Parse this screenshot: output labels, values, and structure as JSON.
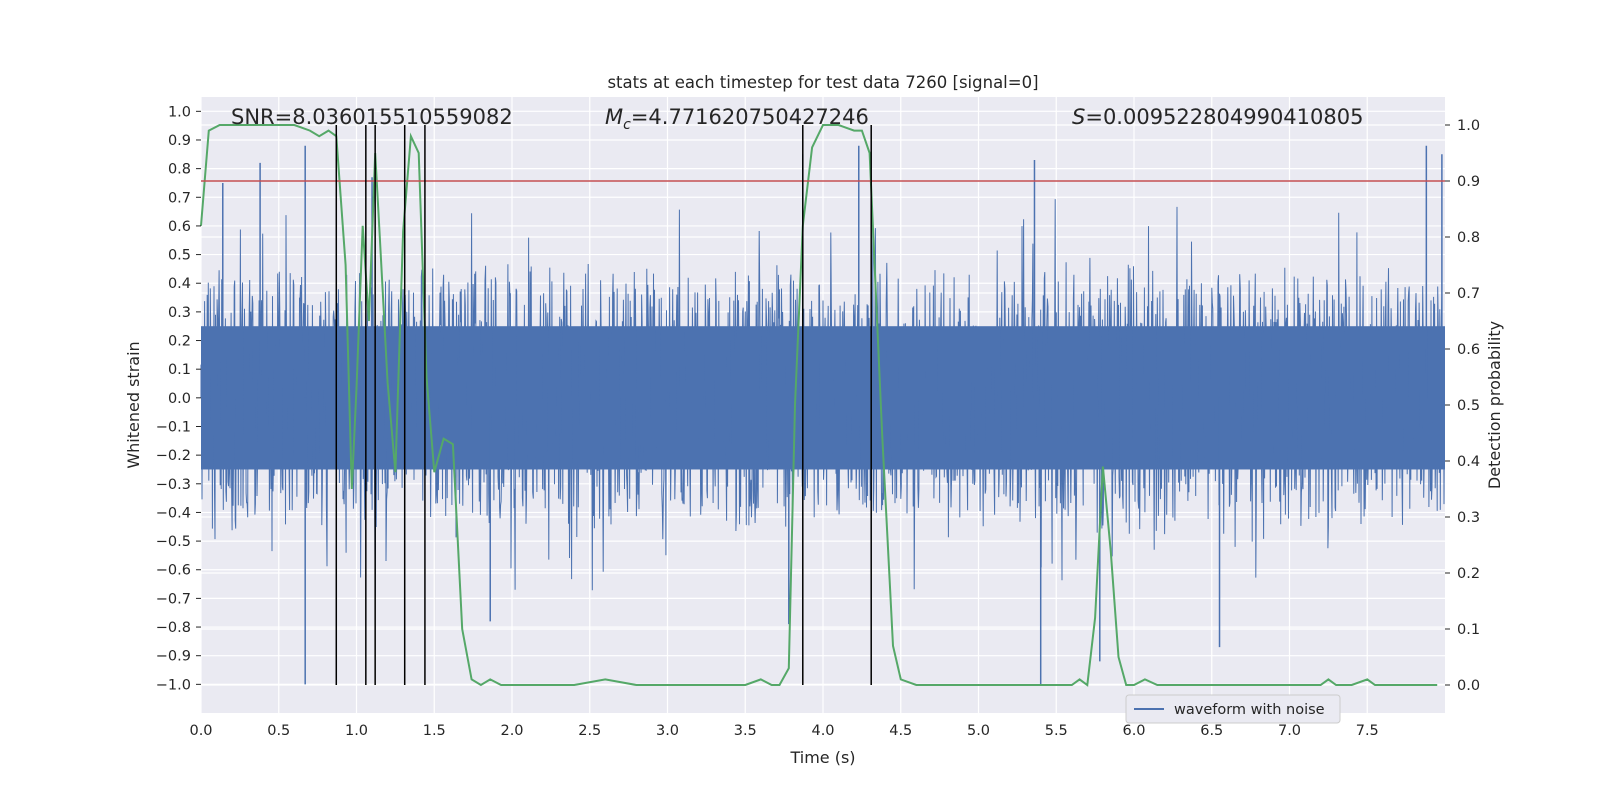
{
  "chart_data": {
    "type": "line",
    "title": "stats at each timestep for test data 7260 [signal=0]",
    "xlabel": "Time (s)",
    "ylabel_left": "Whitened strain",
    "ylabel_right": "Detection probability",
    "xlim": [
      0,
      8
    ],
    "ylim_left": [
      -1.1,
      1.05
    ],
    "ylim_right": [
      -0.05,
      1.05
    ],
    "xticks": [
      "0.0",
      "0.5",
      "1.0",
      "1.5",
      "2.0",
      "2.5",
      "3.0",
      "3.5",
      "4.0",
      "4.5",
      "5.0",
      "5.5",
      "6.0",
      "6.5",
      "7.0",
      "7.5"
    ],
    "yticks_left": [
      "1.0",
      "0.9",
      "0.8",
      "0.7",
      "0.6",
      "0.5",
      "0.4",
      "0.3",
      "0.2",
      "0.1",
      "0.0",
      "-0.1",
      "-0.2",
      "-0.3",
      "-0.4",
      "-0.5",
      "-0.6",
      "-0.7",
      "-0.8",
      "-0.9",
      "-1.0"
    ],
    "yticks_right": [
      "1.0",
      "0.9",
      "0.8",
      "0.7",
      "0.6",
      "0.5",
      "0.4",
      "0.3",
      "0.2",
      "0.1",
      "0.0"
    ],
    "grid": true,
    "legend": {
      "label": "waveform with noise",
      "placement": "lower-right"
    },
    "annotations": {
      "snr": "SNR=8.036015510559082",
      "mc_symbol": "M",
      "mc_sub": "c",
      "mc_value": "=4.771620750427246",
      "s_symbol": "S",
      "s_value": "=0.009522804990410805"
    },
    "threshold": {
      "value": 0.9,
      "axis": "right",
      "color": "#c44e52"
    },
    "detection_marks_s": [
      0.87,
      1.06,
      1.12,
      1.31,
      1.44,
      3.87,
      4.31
    ],
    "series": [
      {
        "name": "waveform with noise",
        "axis": "left",
        "color": "#4c72b0",
        "envelope_note": "dense noise, amplitude approx ±0.45 with peaks up to ±1.0",
        "peaks": [
          {
            "x": 0.67,
            "y": 0.88
          },
          {
            "x": 0.67,
            "y": -1.0
          },
          {
            "x": 0.38,
            "y": 0.82
          },
          {
            "x": 1.1,
            "y": 0.77
          },
          {
            "x": 4.23,
            "y": 0.88
          },
          {
            "x": 3.87,
            "y": 0.85
          },
          {
            "x": 5.36,
            "y": 0.83
          },
          {
            "x": 5.4,
            "y": -1.0
          },
          {
            "x": 5.78,
            "y": -0.92
          },
          {
            "x": 6.55,
            "y": -0.87
          },
          {
            "x": 7.88,
            "y": 0.88
          },
          {
            "x": 7.98,
            "y": 0.85
          },
          {
            "x": 1.86,
            "y": -0.78
          },
          {
            "x": 3.78,
            "y": -0.79
          },
          {
            "x": 0.14,
            "y": 0.75
          }
        ]
      },
      {
        "name": "detection probability",
        "axis": "right",
        "color": "#55a868",
        "x": [
          0.0,
          0.05,
          0.12,
          0.2,
          0.3,
          0.4,
          0.5,
          0.6,
          0.7,
          0.76,
          0.82,
          0.87,
          0.93,
          0.97,
          1.0,
          1.04,
          1.08,
          1.12,
          1.15,
          1.2,
          1.25,
          1.3,
          1.35,
          1.4,
          1.45,
          1.5,
          1.56,
          1.62,
          1.68,
          1.74,
          1.8,
          1.86,
          1.93,
          2.0,
          2.1,
          2.2,
          2.4,
          2.6,
          2.8,
          3.0,
          3.2,
          3.3,
          3.4,
          3.5,
          3.6,
          3.67,
          3.72,
          3.78,
          3.82,
          3.87,
          3.93,
          4.0,
          4.1,
          4.2,
          4.25,
          4.3,
          4.38,
          4.45,
          4.5,
          4.6,
          4.7,
          4.8,
          5.0,
          5.2,
          5.4,
          5.5,
          5.6,
          5.65,
          5.7,
          5.75,
          5.8,
          5.85,
          5.9,
          5.95,
          6.0,
          6.07,
          6.15,
          6.2,
          6.3,
          6.5,
          6.7,
          6.9,
          7.0,
          7.2,
          7.25,
          7.3,
          7.4,
          7.5,
          7.55,
          7.6,
          7.7,
          7.8,
          7.95
        ],
        "values": [
          0.82,
          0.99,
          1.0,
          1.0,
          1.0,
          1.0,
          1.0,
          1.0,
          0.99,
          0.98,
          0.99,
          0.98,
          0.75,
          0.35,
          0.53,
          0.82,
          0.65,
          0.95,
          0.8,
          0.54,
          0.38,
          0.81,
          0.98,
          0.95,
          0.55,
          0.38,
          0.44,
          0.43,
          0.1,
          0.01,
          0.0,
          0.01,
          0.0,
          0.0,
          0.0,
          0.0,
          0.0,
          0.01,
          0.0,
          0.0,
          0.0,
          0.0,
          0.0,
          0.0,
          0.01,
          0.0,
          0.0,
          0.03,
          0.5,
          0.82,
          0.96,
          1.0,
          1.0,
          0.99,
          0.99,
          0.95,
          0.45,
          0.07,
          0.01,
          0.0,
          0.0,
          0.0,
          0.0,
          0.0,
          0.0,
          0.0,
          0.0,
          0.01,
          0.0,
          0.12,
          0.39,
          0.24,
          0.05,
          0.0,
          0.0,
          0.01,
          0.0,
          0.0,
          0.0,
          0.0,
          0.0,
          0.0,
          0.0,
          0.0,
          0.01,
          0.0,
          0.0,
          0.01,
          0.0,
          0.0,
          0.0,
          0.0,
          0.0
        ]
      }
    ]
  }
}
